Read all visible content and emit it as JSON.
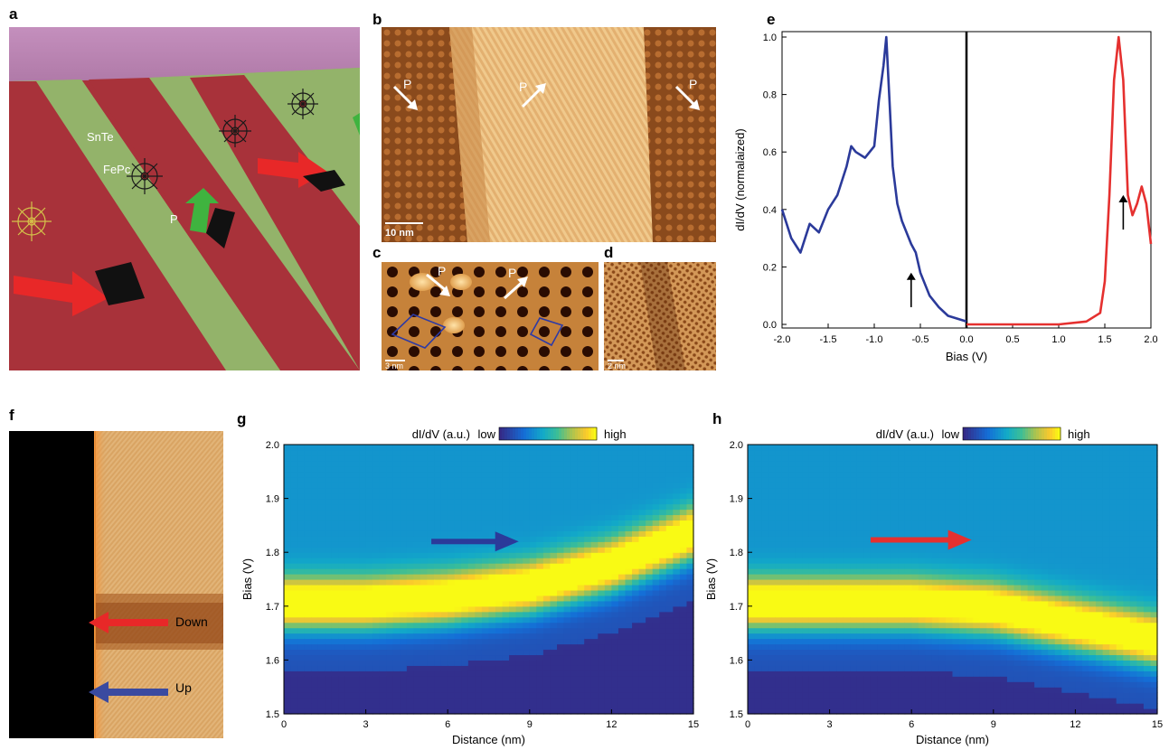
{
  "panels": {
    "a": {
      "letter": "a",
      "label_snte": "SnTe",
      "label_fepc": "FePc",
      "label_p": "P"
    },
    "b": {
      "letter": "b",
      "scale_bar": "10 nm",
      "p_labels": [
        "P",
        "P",
        "P"
      ]
    },
    "c": {
      "letter": "c",
      "scale_bar": "3 nm",
      "p_labels": [
        "P",
        "P"
      ]
    },
    "d": {
      "letter": "d",
      "scale_bar": "2 nm"
    },
    "e": {
      "letter": "e"
    },
    "f": {
      "letter": "f",
      "label_down": "Down",
      "label_up": "Up"
    },
    "g": {
      "letter": "g",
      "colorbar_label": "dI/dV (a.u.)",
      "colorbar_low": "low",
      "colorbar_high": "high"
    },
    "h": {
      "letter": "h",
      "colorbar_label": "dI/dV (a.u.)",
      "colorbar_low": "low",
      "colorbar_high": "high"
    }
  },
  "colors": {
    "blue_series": "#2b3a9a",
    "red_series": "#e5302f",
    "stm_orange": "#d9964a",
    "stm_dark": "#6b2e0c",
    "green_arrow": "#3fb33f"
  },
  "chart_data": [
    {
      "panel": "e",
      "type": "line",
      "xlabel": "Bias (V)",
      "ylabel": "dI/dV (normalaized)",
      "xlim": [
        -2.0,
        2.0
      ],
      "ylim": [
        0.0,
        1.0
      ],
      "xticks": [
        "-2.0",
        "-1.5",
        "-1.0",
        "-0.5",
        "0.0",
        "0.5",
        "1.0",
        "1.5",
        "2.0"
      ],
      "yticks": [
        "0.0",
        "0.2",
        "0.4",
        "0.6",
        "0.8",
        "1.0"
      ],
      "vertical_line_x": 0.0,
      "series": [
        {
          "color": "#2b3a9a",
          "x": [
            -2.0,
            -1.9,
            -1.8,
            -1.7,
            -1.6,
            -1.5,
            -1.4,
            -1.3,
            -1.25,
            -1.2,
            -1.1,
            -1.0,
            -0.95,
            -0.9,
            -0.87,
            -0.83,
            -0.8,
            -0.75,
            -0.7,
            -0.6,
            -0.55,
            -0.5,
            -0.4,
            -0.3,
            -0.2,
            -0.1,
            0.0
          ],
          "y": [
            0.4,
            0.3,
            0.25,
            0.35,
            0.32,
            0.4,
            0.45,
            0.55,
            0.62,
            0.6,
            0.58,
            0.62,
            0.78,
            0.9,
            1.0,
            0.75,
            0.55,
            0.42,
            0.36,
            0.28,
            0.25,
            0.18,
            0.1,
            0.06,
            0.03,
            0.02,
            0.01
          ]
        },
        {
          "color": "#e5302f",
          "x": [
            0.0,
            0.5,
            1.0,
            1.3,
            1.45,
            1.5,
            1.55,
            1.6,
            1.65,
            1.7,
            1.75,
            1.8,
            1.85,
            1.9,
            1.95,
            2.0
          ],
          "y": [
            0.0,
            0.0,
            0.0,
            0.01,
            0.04,
            0.15,
            0.45,
            0.85,
            1.0,
            0.85,
            0.45,
            0.38,
            0.42,
            0.48,
            0.42,
            0.28
          ]
        }
      ],
      "annotations": [
        {
          "type": "up-arrow",
          "x": -0.6,
          "y_from": 0.06,
          "y_to": 0.18
        },
        {
          "type": "up-arrow",
          "x": 1.7,
          "y_from": 0.33,
          "y_to": 0.45
        }
      ]
    },
    {
      "panel": "g",
      "type": "heatmap",
      "xlabel": "Distance (nm)",
      "ylabel": "Bias (V)",
      "xlim": [
        0,
        15
      ],
      "ylim": [
        1.5,
        2.0
      ],
      "xticks": [
        "0",
        "3",
        "6",
        "9",
        "12",
        "15"
      ],
      "yticks": [
        "1.5",
        "1.6",
        "1.7",
        "1.8",
        "1.9",
        "2.0"
      ],
      "peak_x": [
        0,
        3,
        6,
        9,
        12,
        15
      ],
      "peak_bias": [
        1.7,
        1.7,
        1.71,
        1.73,
        1.77,
        1.83
      ],
      "arrow_color": "#2b3a9a"
    },
    {
      "panel": "h",
      "type": "heatmap",
      "xlabel": "Distance (nm)",
      "ylabel": "Bias (V)",
      "xlim": [
        0,
        15
      ],
      "ylim": [
        1.5,
        2.0
      ],
      "xticks": [
        "0",
        "3",
        "6",
        "9",
        "12",
        "15"
      ],
      "yticks": [
        "1.5",
        "1.6",
        "1.7",
        "1.8",
        "1.9",
        "2.0"
      ],
      "peak_x": [
        0,
        3,
        6,
        9,
        12,
        15
      ],
      "peak_bias": [
        1.7,
        1.7,
        1.7,
        1.69,
        1.66,
        1.63
      ],
      "arrow_color": "#e5302f"
    }
  ]
}
